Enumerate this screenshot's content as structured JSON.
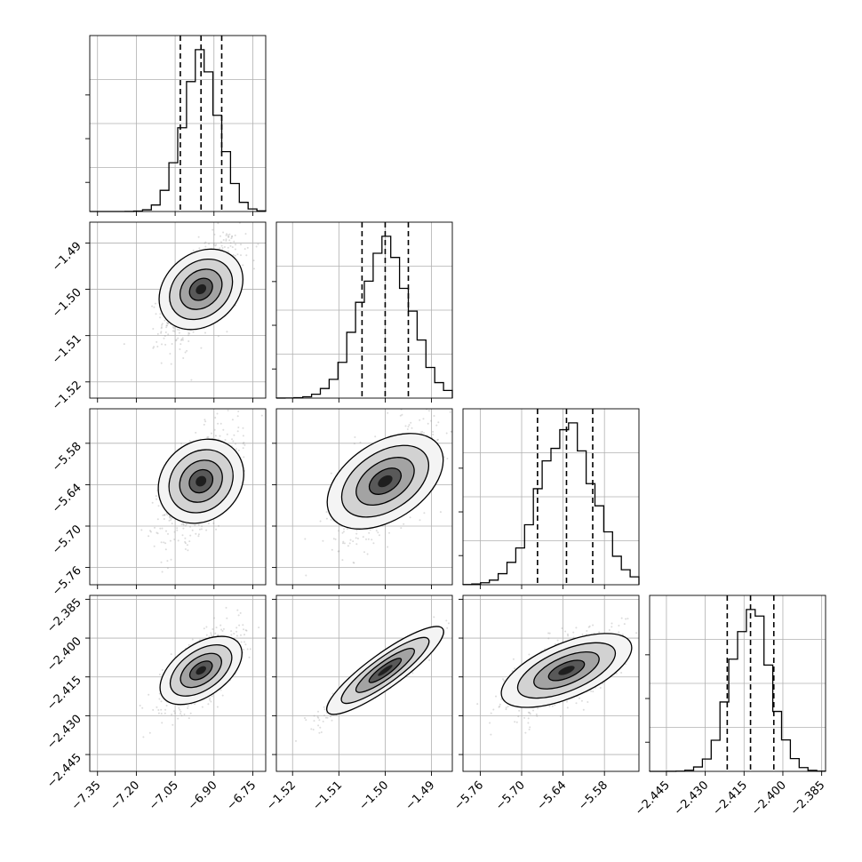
{
  "chart_data": {
    "type": "corner",
    "parameters": [
      {
        "ticks": [
          -7.35,
          -7.2,
          -7.05,
          -6.9,
          -6.75
        ],
        "tick_labels": [
          "−7.35",
          "−7.20",
          "−7.05",
          "−6.90",
          "−6.75"
        ],
        "range": [
          -7.38,
          -6.7
        ],
        "mean": -6.95,
        "std": 0.07,
        "quantiles": [
          -7.03,
          -6.95,
          -6.87
        ]
      },
      {
        "ticks": [
          -1.52,
          -1.51,
          -1.5,
          -1.49
        ],
        "tick_labels": [
          "−1.52",
          "−1.51",
          "−1.50",
          "−1.49"
        ],
        "range": [
          -1.5235,
          -1.4855
        ],
        "mean": -1.5,
        "std": 0.0055,
        "quantiles": [
          -1.505,
          -1.5,
          -1.495
        ]
      },
      {
        "ticks": [
          -5.76,
          -5.7,
          -5.64,
          -5.58
        ],
        "tick_labels": [
          "−5.76",
          "−5.70",
          "−5.64",
          "−5.58"
        ],
        "range": [
          -5.785,
          -5.53
        ],
        "mean": -5.635,
        "std": 0.04,
        "quantiles": [
          -5.677,
          -5.635,
          -5.597
        ]
      },
      {
        "ticks": [
          -2.445,
          -2.43,
          -2.415,
          -2.4,
          -2.385
        ],
        "tick_labels": [
          "−2.445",
          "−2.430",
          "−2.415",
          "−2.400",
          "−2.385"
        ],
        "range": [
          -2.4515,
          -2.3835
        ],
        "mean": -2.4125,
        "std": 0.0075,
        "quantiles": [
          -2.4215,
          -2.4125,
          -2.4035
        ]
      }
    ],
    "correlations": [
      [
        1,
        0.6,
        0.6,
        0.65
      ],
      [
        0.6,
        1,
        0.6,
        0.95
      ],
      [
        0.6,
        0.6,
        1,
        0.6
      ],
      [
        0.65,
        0.95,
        0.6,
        1
      ]
    ],
    "histogram_bins": 20,
    "grid": true,
    "colors": {
      "line": "#000000",
      "points": "#9a9a9a",
      "grid": "#b0b0b0"
    }
  }
}
